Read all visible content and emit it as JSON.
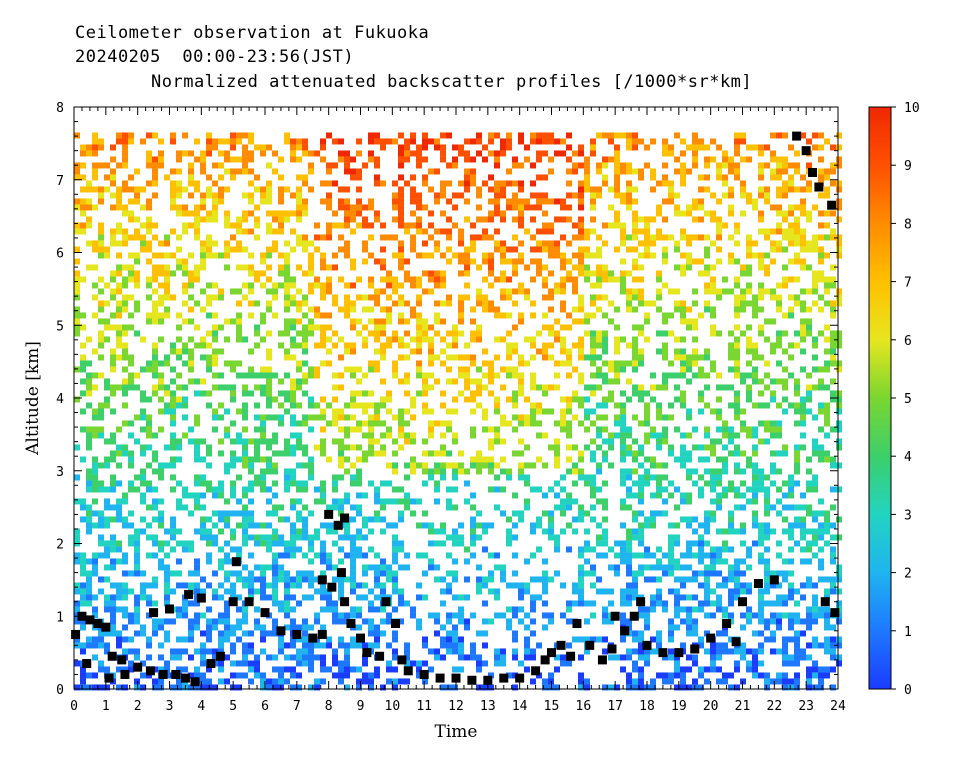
{
  "header": {
    "line1": "Ceilometer observation at Fukuoka",
    "line2": "20240205  00:00-23:56(JST)",
    "line3": "Normalized attenuated backscatter profiles [/1000*sr*km]"
  },
  "colors": {
    "scale": [
      "#1a3cff",
      "#1e78ff",
      "#1fb4f0",
      "#22d4c0",
      "#3ccf6a",
      "#7ad630",
      "#e6e61e",
      "#ffc000",
      "#ff8c00",
      "#ff5000",
      "#f02800"
    ],
    "marker": "#000000",
    "axis": "#000000"
  },
  "chart_data": {
    "type": "heatmap",
    "title": "Normalized attenuated backscatter profiles [/1000*sr*km]",
    "xlabel": "Time",
    "ylabel": "Altitude [km]",
    "xlim": [
      0,
      24
    ],
    "ylim": [
      0,
      8
    ],
    "x_ticks": [
      "0",
      "1",
      "2",
      "3",
      "4",
      "5",
      "6",
      "7",
      "8",
      "9",
      "10",
      "11",
      "12",
      "13",
      "14",
      "15",
      "16",
      "17",
      "18",
      "19",
      "20",
      "21",
      "22",
      "23",
      "24"
    ],
    "y_ticks": [
      "0",
      "1",
      "2",
      "3",
      "4",
      "5",
      "6",
      "7",
      "8"
    ],
    "colorbar": {
      "range": [
        0,
        10
      ],
      "ticks": [
        "0",
        "1",
        "2",
        "3",
        "4",
        "5",
        "6",
        "7",
        "8",
        "9",
        "10"
      ]
    },
    "cloud_base_markers": [
      {
        "x": 0.05,
        "y": 0.75
      },
      {
        "x": 0.25,
        "y": 1.0
      },
      {
        "x": 0.5,
        "y": 0.95
      },
      {
        "x": 0.75,
        "y": 0.9
      },
      {
        "x": 1.0,
        "y": 0.85
      },
      {
        "x": 0.4,
        "y": 0.35
      },
      {
        "x": 1.2,
        "y": 0.45
      },
      {
        "x": 1.5,
        "y": 0.4
      },
      {
        "x": 1.1,
        "y": 0.15
      },
      {
        "x": 1.6,
        "y": 0.2
      },
      {
        "x": 2.0,
        "y": 0.3
      },
      {
        "x": 2.4,
        "y": 0.25
      },
      {
        "x": 2.8,
        "y": 0.2
      },
      {
        "x": 3.2,
        "y": 0.2
      },
      {
        "x": 3.5,
        "y": 0.15
      },
      {
        "x": 3.8,
        "y": 0.1
      },
      {
        "x": 2.5,
        "y": 1.05
      },
      {
        "x": 3.0,
        "y": 1.1
      },
      {
        "x": 3.6,
        "y": 1.3
      },
      {
        "x": 4.0,
        "y": 1.25
      },
      {
        "x": 4.3,
        "y": 0.35
      },
      {
        "x": 4.6,
        "y": 0.45
      },
      {
        "x": 5.0,
        "y": 1.2
      },
      {
        "x": 5.1,
        "y": 1.75
      },
      {
        "x": 5.5,
        "y": 1.2
      },
      {
        "x": 6.0,
        "y": 1.05
      },
      {
        "x": 6.5,
        "y": 0.8
      },
      {
        "x": 7.0,
        "y": 0.75
      },
      {
        "x": 7.5,
        "y": 0.7
      },
      {
        "x": 7.8,
        "y": 0.75
      },
      {
        "x": 7.8,
        "y": 1.5
      },
      {
        "x": 8.1,
        "y": 1.4
      },
      {
        "x": 8.0,
        "y": 2.4
      },
      {
        "x": 8.3,
        "y": 2.25
      },
      {
        "x": 8.5,
        "y": 2.35
      },
      {
        "x": 8.4,
        "y": 1.6
      },
      {
        "x": 8.5,
        "y": 1.2
      },
      {
        "x": 8.7,
        "y": 0.9
      },
      {
        "x": 9.0,
        "y": 0.7
      },
      {
        "x": 9.2,
        "y": 0.5
      },
      {
        "x": 9.6,
        "y": 0.45
      },
      {
        "x": 9.8,
        "y": 1.2
      },
      {
        "x": 10.1,
        "y": 0.9
      },
      {
        "x": 10.3,
        "y": 0.4
      },
      {
        "x": 10.5,
        "y": 0.25
      },
      {
        "x": 11.0,
        "y": 0.2
      },
      {
        "x": 11.5,
        "y": 0.15
      },
      {
        "x": 12.0,
        "y": 0.15
      },
      {
        "x": 12.5,
        "y": 0.12
      },
      {
        "x": 13.0,
        "y": 0.12
      },
      {
        "x": 13.5,
        "y": 0.15
      },
      {
        "x": 14.0,
        "y": 0.15
      },
      {
        "x": 14.5,
        "y": 0.25
      },
      {
        "x": 14.8,
        "y": 0.4
      },
      {
        "x": 15.0,
        "y": 0.5
      },
      {
        "x": 15.3,
        "y": 0.6
      },
      {
        "x": 15.6,
        "y": 0.45
      },
      {
        "x": 15.8,
        "y": 0.9
      },
      {
        "x": 16.2,
        "y": 0.6
      },
      {
        "x": 16.6,
        "y": 0.4
      },
      {
        "x": 16.9,
        "y": 0.55
      },
      {
        "x": 17.0,
        "y": 1.0
      },
      {
        "x": 17.3,
        "y": 0.8
      },
      {
        "x": 17.6,
        "y": 1.0
      },
      {
        "x": 17.8,
        "y": 1.2
      },
      {
        "x": 18.0,
        "y": 0.6
      },
      {
        "x": 18.5,
        "y": 0.5
      },
      {
        "x": 19.0,
        "y": 0.5
      },
      {
        "x": 19.5,
        "y": 0.55
      },
      {
        "x": 20.0,
        "y": 0.7
      },
      {
        "x": 20.5,
        "y": 0.9
      },
      {
        "x": 20.8,
        "y": 0.65
      },
      {
        "x": 21.0,
        "y": 1.2
      },
      {
        "x": 21.5,
        "y": 1.45
      },
      {
        "x": 22.0,
        "y": 1.5
      },
      {
        "x": 22.7,
        "y": 7.6
      },
      {
        "x": 23.0,
        "y": 7.4
      },
      {
        "x": 23.2,
        "y": 7.1
      },
      {
        "x": 23.4,
        "y": 6.9
      },
      {
        "x": 23.6,
        "y": 1.2
      },
      {
        "x": 23.8,
        "y": 6.65
      },
      {
        "x": 23.9,
        "y": 1.05
      }
    ]
  }
}
